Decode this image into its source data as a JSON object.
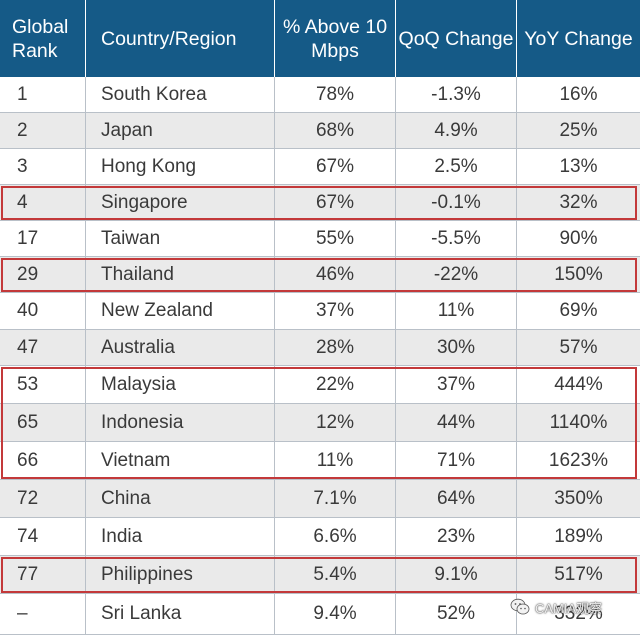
{
  "headers": {
    "rank": "Global Rank",
    "country": "Country/Region",
    "above": "% Above 10 Mbps",
    "qoq": "QoQ Change",
    "yoy": "YoY Change"
  },
  "rows": [
    {
      "rank": "1",
      "country": "South Korea",
      "above": "78%",
      "qoq": "-1.3%",
      "yoy": "16%",
      "shaded": false
    },
    {
      "rank": "2",
      "country": "Japan",
      "above": "68%",
      "qoq": "4.9%",
      "yoy": "25%",
      "shaded": true
    },
    {
      "rank": "3",
      "country": "Hong Kong",
      "above": "67%",
      "qoq": "2.5%",
      "yoy": "13%",
      "shaded": false
    },
    {
      "rank": "4",
      "country": "Singapore",
      "above": "67%",
      "qoq": "-0.1%",
      "yoy": "32%",
      "shaded": true
    },
    {
      "rank": "17",
      "country": "Taiwan",
      "above": "55%",
      "qoq": "-5.5%",
      "yoy": "90%",
      "shaded": false
    },
    {
      "rank": "29",
      "country": "Thailand",
      "above": "46%",
      "qoq": "-22%",
      "yoy": "150%",
      "shaded": true
    },
    {
      "rank": "40",
      "country": "New Zealand",
      "above": "37%",
      "qoq": "11%",
      "yoy": "69%",
      "shaded": false
    },
    {
      "rank": "47",
      "country": "Australia",
      "above": "28%",
      "qoq": "30%",
      "yoy": "57%",
      "shaded": true
    },
    {
      "rank": "53",
      "country": "Malaysia",
      "above": "22%",
      "qoq": "37%",
      "yoy": "444%",
      "shaded": false
    },
    {
      "rank": "65",
      "country": "Indonesia",
      "above": "12%",
      "qoq": "44%",
      "yoy": "1140%",
      "shaded": true
    },
    {
      "rank": "66",
      "country": "Vietnam",
      "above": "11%",
      "qoq": "71%",
      "yoy": "1623%",
      "shaded": false
    },
    {
      "rank": "72",
      "country": "China",
      "above": "7.1%",
      "qoq": "64%",
      "yoy": "350%",
      "shaded": true
    },
    {
      "rank": "74",
      "country": "India",
      "above": "6.6%",
      "qoq": "23%",
      "yoy": "189%",
      "shaded": false
    },
    {
      "rank": "77",
      "country": "Philippines",
      "above": "5.4%",
      "qoq": "9.1%",
      "yoy": "517%",
      "shaded": true
    },
    {
      "rank": "–",
      "country": "Sri Lanka",
      "above": "9.4%",
      "qoq": "52%",
      "yoy": "332%",
      "shaded": false
    }
  ],
  "highlighted_groups": [
    [
      "Singapore"
    ],
    [
      "Thailand"
    ],
    [
      "Malaysia",
      "Indonesia",
      "Vietnam"
    ],
    [
      "Philippines"
    ]
  ],
  "colors": {
    "header_bg": "#155a87",
    "header_text": "#ffffff",
    "shade_bg": "#eaeaea",
    "highlight_border": "#c3393a"
  },
  "watermark": {
    "text": "CAMIA观察",
    "icon": "wechat-icon"
  }
}
